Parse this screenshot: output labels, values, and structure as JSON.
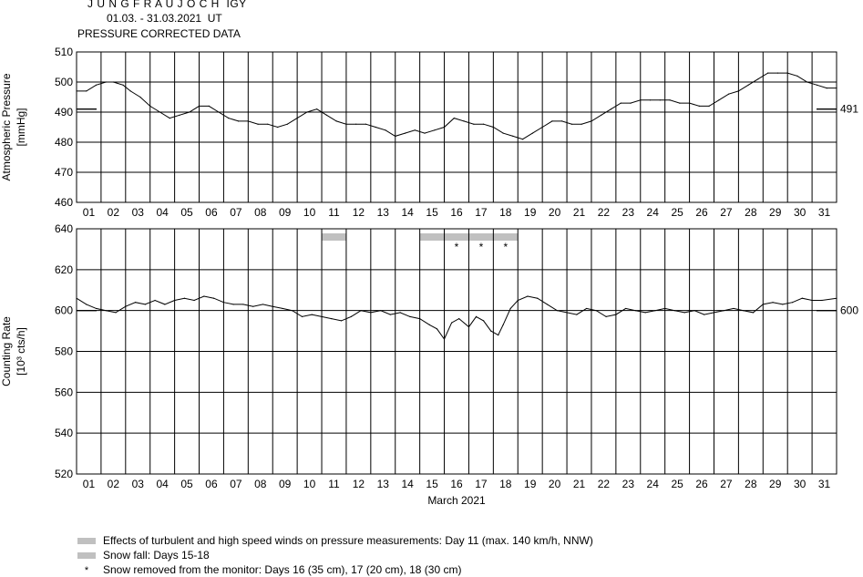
{
  "header": {
    "station": "J U N G F R A U J O C H  IGY",
    "period": "01.03. - 31.03.2021  UT",
    "subtitle": "PRESSURE CORRECTED DATA"
  },
  "legend": {
    "wind": "Effects of turbulent and high speed winds on pressure measurements: Day 11 (max. 140 km/h, NNW)",
    "snow": "Snow fall: Days 15-18",
    "removed": "Snow removed from the monitor: Days 16 (35 cm), 17 (20 cm), 18 (30 cm)",
    "removed_symbol": "*"
  },
  "colors": {
    "line": "#000000",
    "grid": "#000000",
    "shade": "#c0c0c0"
  },
  "chart_data": [
    {
      "type": "line",
      "ylabel": "Atmospheric Pressure",
      "yunit": "[mmHg]",
      "ylim": [
        460,
        510
      ],
      "yticks": [
        460,
        470,
        480,
        490,
        500,
        510
      ],
      "xlim": [
        1,
        32
      ],
      "day_labels": [
        "01",
        "02",
        "03",
        "04",
        "05",
        "06",
        "07",
        "08",
        "09",
        "10",
        "11",
        "12",
        "13",
        "14",
        "15",
        "16",
        "17",
        "18",
        "19",
        "20",
        "21",
        "22",
        "23",
        "24",
        "25",
        "26",
        "27",
        "28",
        "29",
        "30",
        "31"
      ],
      "reference": {
        "value": 491,
        "label": "491"
      },
      "grid": true,
      "series": [
        {
          "x": [
            1.0,
            1.4,
            1.8,
            2.2,
            2.5,
            2.9,
            3.2,
            3.6,
            4.0,
            4.4,
            4.8,
            5.2,
            5.6,
            6.0,
            6.4,
            6.8,
            7.2,
            7.6,
            8.0,
            8.4,
            8.8,
            9.2,
            9.6,
            10.0,
            10.4,
            10.8,
            11.2,
            11.6,
            12.0,
            12.4,
            12.8,
            13.2,
            13.6,
            14.0,
            14.4,
            14.8,
            15.2,
            15.6,
            16.0,
            16.4,
            16.8,
            17.2,
            17.6,
            18.0,
            18.4,
            18.8,
            19.2,
            19.6,
            20.0,
            20.4,
            20.8,
            21.2,
            21.6,
            22.0,
            22.4,
            22.8,
            23.2,
            23.6,
            24.0,
            24.4,
            24.8,
            25.2,
            25.6,
            26.0,
            26.4,
            26.8,
            27.2,
            27.6,
            28.0,
            28.4,
            28.8,
            29.2,
            29.6,
            30.0,
            30.4,
            30.8,
            31.2,
            31.6,
            32.0
          ],
          "values": [
            497,
            497,
            499,
            500,
            500,
            499,
            497,
            495,
            492,
            490,
            488,
            489,
            490,
            492,
            492,
            490,
            488,
            487,
            487,
            486,
            486,
            485,
            486,
            488,
            490,
            491,
            489,
            487,
            486,
            486,
            486,
            485,
            484,
            482,
            483,
            484,
            483,
            484,
            485,
            488,
            487,
            486,
            486,
            485,
            483,
            482,
            481,
            483,
            485,
            487,
            487,
            486,
            486,
            487,
            489,
            491,
            493,
            493,
            494,
            494,
            494,
            494,
            493,
            493,
            492,
            492,
            494,
            496,
            497,
            499,
            501,
            503,
            503,
            503,
            502,
            500,
            499,
            498,
            498
          ]
        }
      ]
    },
    {
      "type": "line",
      "ylabel": "Counting Rate",
      "yunit": "[10³ cts/h]",
      "xlabel": "March 2021",
      "ylim": [
        520,
        640
      ],
      "yticks": [
        520,
        540,
        560,
        580,
        600,
        620,
        640
      ],
      "xlim": [
        1,
        32
      ],
      "day_labels": [
        "01",
        "02",
        "03",
        "04",
        "05",
        "06",
        "07",
        "08",
        "09",
        "10",
        "11",
        "12",
        "13",
        "14",
        "15",
        "16",
        "17",
        "18",
        "19",
        "20",
        "21",
        "22",
        "23",
        "24",
        "25",
        "26",
        "27",
        "28",
        "29",
        "30",
        "31"
      ],
      "reference": {
        "value": 600,
        "label": "600"
      },
      "grid": true,
      "shaded_days": [
        11,
        15,
        16,
        17,
        18
      ],
      "snow_removed_days": [
        16,
        17,
        18
      ],
      "series": [
        {
          "x": [
            1.0,
            1.4,
            1.8,
            2.2,
            2.6,
            3.0,
            3.4,
            3.8,
            4.2,
            4.6,
            5.0,
            5.4,
            5.8,
            6.2,
            6.6,
            7.0,
            7.4,
            7.8,
            8.2,
            8.6,
            9.0,
            9.4,
            9.8,
            10.2,
            10.6,
            11.0,
            11.4,
            11.8,
            12.2,
            12.6,
            13.0,
            13.4,
            13.8,
            14.2,
            14.6,
            15.0,
            15.4,
            15.7,
            16.0,
            16.3,
            16.6,
            17.0,
            17.3,
            17.6,
            17.9,
            18.2,
            18.4,
            18.7,
            19.0,
            19.4,
            19.8,
            20.2,
            20.6,
            21.0,
            21.4,
            21.8,
            22.2,
            22.6,
            23.0,
            23.4,
            23.8,
            24.2,
            24.6,
            25.0,
            25.4,
            25.8,
            26.2,
            26.6,
            27.0,
            27.4,
            27.8,
            28.2,
            28.6,
            29.0,
            29.4,
            29.8,
            30.2,
            30.6,
            31.0,
            31.4,
            32.0
          ],
          "values": [
            606,
            603,
            601,
            600,
            599,
            602,
            604,
            603,
            605,
            603,
            605,
            606,
            605,
            607,
            606,
            604,
            603,
            603,
            602,
            603,
            602,
            601,
            600,
            597,
            598,
            597,
            596,
            595,
            597,
            600,
            599,
            600,
            598,
            599,
            597,
            596,
            593,
            591,
            586,
            594,
            596,
            592,
            597,
            595,
            590,
            588,
            593,
            601,
            605,
            607,
            606,
            603,
            600,
            599,
            598,
            601,
            600,
            597,
            598,
            601,
            600,
            599,
            600,
            601,
            600,
            599,
            600,
            598,
            599,
            600,
            601,
            600,
            599,
            603,
            604,
            603,
            604,
            606,
            605,
            605,
            606
          ]
        }
      ]
    }
  ]
}
